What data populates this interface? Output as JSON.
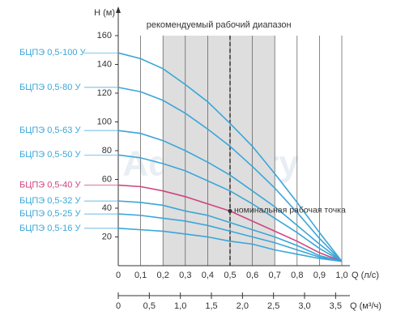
{
  "chart_data": {
    "type": "line",
    "range_title": "рекомендуемый рабочий диапазон",
    "recommended_range": [
      0.2,
      0.7
    ],
    "nominal_q": 0.5,
    "nominal_point": {
      "label": "номинальная рабочая точка",
      "x": 0.5,
      "y": 38
    },
    "watermark": "Aquastory",
    "x_label": "Q (л/с)",
    "x2_label": "Q (м³/ч)",
    "y_label": "H (м)",
    "xlim": [
      0,
      1.0
    ],
    "xticks": [
      0,
      {
        "value": 0.1,
        "label": "0,1"
      },
      {
        "value": 0.2,
        "label": "0,2"
      },
      {
        "value": 0.3,
        "label": "0,3"
      },
      {
        "value": 0.4,
        "label": "0,4"
      },
      {
        "value": 0.5,
        "label": "0,5"
      },
      {
        "value": 0.6,
        "label": "0,6"
      },
      {
        "value": 0.7,
        "label": "0,7"
      },
      {
        "value": 0.8,
        "label": "0,8"
      },
      {
        "value": 0.9,
        "label": "0,9"
      },
      {
        "value": 1.0,
        "label": "1,0"
      }
    ],
    "x2lim": [
      0,
      3.6
    ],
    "x2ticks": [
      0,
      {
        "value": 0.5,
        "label": "0,5"
      },
      {
        "value": 1.0,
        "label": "1,0"
      },
      {
        "value": 1.5,
        "label": "1,5"
      },
      {
        "value": 2.0,
        "label": "2,0"
      },
      {
        "value": 2.5,
        "label": "2,5"
      },
      {
        "value": 3.0,
        "label": "3,0"
      },
      {
        "value": 3.5,
        "label": "3,5"
      }
    ],
    "ylim": [
      0,
      160
    ],
    "yticks": [
      20,
      40,
      60,
      80,
      100,
      120,
      140,
      160
    ],
    "x": [
      0,
      0.1,
      0.2,
      0.3,
      0.4,
      0.5,
      0.6,
      0.7,
      0.8,
      0.9,
      1.0
    ],
    "series": [
      {
        "name": "БЦПЭ 0,5-100 У",
        "color": "#3aa6d8",
        "values": [
          148,
          144,
          137,
          126,
          114,
          99,
          83,
          64,
          44,
          23,
          3
        ]
      },
      {
        "name": "БЦПЭ 0,5-80 У",
        "color": "#3aa6d8",
        "values": [
          124,
          121,
          115,
          106,
          95,
          83,
          69,
          54,
          37,
          19,
          3
        ]
      },
      {
        "name": "БЦПЭ 0,5-63 У",
        "color": "#3aa6d8",
        "values": [
          94,
          92,
          87,
          80,
          72,
          63,
          52,
          41,
          28,
          15,
          3
        ]
      },
      {
        "name": "БЦПЭ 0,5-50 У",
        "color": "#3aa6d8",
        "values": [
          77,
          75,
          71,
          66,
          59,
          52,
          43,
          33,
          23,
          12,
          3
        ]
      },
      {
        "name": "БЦПЭ 0,5-40 У",
        "color": "#d0457e",
        "values": [
          56,
          55,
          52,
          48,
          43,
          38,
          31,
          24,
          17,
          9,
          3
        ]
      },
      {
        "name": "БЦПЭ 0,5-32 У",
        "color": "#3aa6d8",
        "values": [
          45,
          44,
          42,
          38,
          35,
          30,
          25,
          20,
          14,
          7,
          3
        ]
      },
      {
        "name": "БЦПЭ 0,5-25 У",
        "color": "#3aa6d8",
        "values": [
          36,
          35,
          33,
          31,
          28,
          24,
          20,
          16,
          11,
          6,
          3
        ]
      },
      {
        "name": "БЦПЭ 0,5-16 У",
        "color": "#3aa6d8",
        "values": [
          26,
          25,
          24,
          22,
          20,
          17,
          15,
          11,
          8,
          5,
          3
        ]
      }
    ]
  }
}
